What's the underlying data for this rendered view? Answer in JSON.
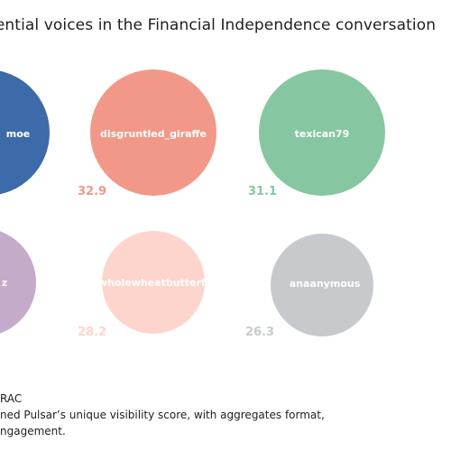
{
  "title": "uential voices in the Financial Independence conversation",
  "footnote": {
    "line1": "RAC",
    "line2": "ned Pulsar’s unique visibility score, with aggregates format,",
    "line3": "ngagement."
  },
  "chart_data": {
    "type": "bubble",
    "title": "uential voices in the Financial Independence conversation",
    "series": [
      {
        "name": "moe",
        "value": null,
        "color": "#3d6aa8"
      },
      {
        "name": "disgruntled_giraffe",
        "value": 32.9,
        "color": "#f29888"
      },
      {
        "name": "texican79",
        "value": 31.1,
        "color": "#86c7a1"
      },
      {
        "name": "z",
        "value": null,
        "color": "#c4abc9"
      },
      {
        "name": "wholewheatbutterfl",
        "value": 28.2,
        "color": "#fdd5cd"
      },
      {
        "name": "anaanymous",
        "value": 26.3,
        "color": "#c6cacd"
      }
    ]
  }
}
